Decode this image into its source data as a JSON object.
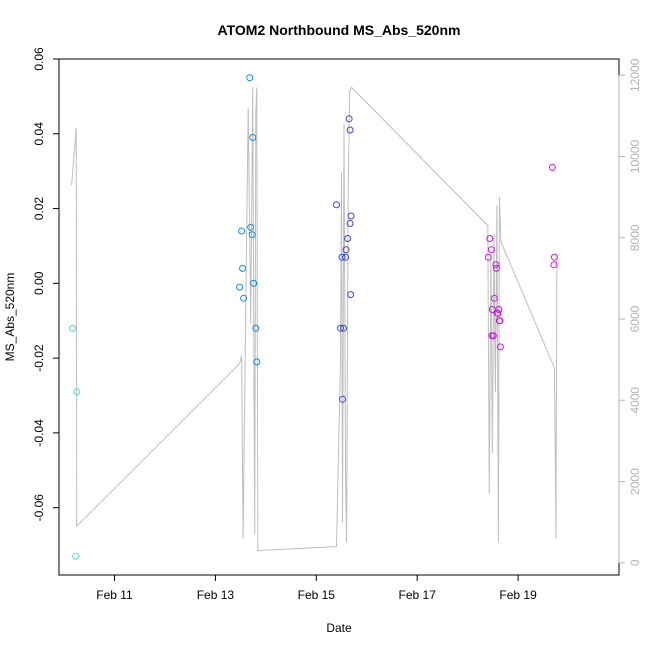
{
  "chart_data": {
    "type": "scatter",
    "title": "ATOM2 Northbound MS_Abs_520nm",
    "xlabel": "Date",
    "ylabel": "MS_Abs_520nm",
    "x_ticks": [
      "Feb 11",
      "Feb 13",
      "Feb 15",
      "Feb 17",
      "Feb 19"
    ],
    "x_tick_values": [
      11,
      13,
      15,
      17,
      19
    ],
    "xlim": [
      9.9,
      21.0
    ],
    "ylim": [
      -0.078,
      0.06
    ],
    "y_ticks": [
      -0.06,
      -0.04,
      -0.02,
      0.0,
      0.02,
      0.04,
      0.06
    ],
    "y_tick_labels": [
      "-0.06",
      "-0.04",
      "-0.02",
      "0.00",
      "0.02",
      "0.04",
      "0.06"
    ],
    "y2lim": [
      -300,
      12400
    ],
    "y2_ticks": [
      0,
      2000,
      4000,
      6000,
      8000,
      10000,
      12000
    ],
    "y2_tick_labels": [
      "0",
      "2000",
      "4000",
      "6000",
      "8000",
      "10000",
      "12000"
    ],
    "grid": false,
    "legend": "none",
    "line_color": "#bebebe",
    "axis_color": "#000000",
    "right_axis_color": "#b3b3b3",
    "point_color_scale": [
      "#40e0d0",
      "#00bfff",
      "#1e50e0",
      "#8a2be2",
      "#ff00ff"
    ],
    "points": [
      {
        "x": 10.17,
        "y": -0.012
      },
      {
        "x": 10.25,
        "y": -0.029
      },
      {
        "x": 10.23,
        "y": -0.073
      },
      {
        "x": 13.48,
        "y": -0.001
      },
      {
        "x": 13.52,
        "y": 0.014
      },
      {
        "x": 13.54,
        "y": 0.004
      },
      {
        "x": 13.56,
        "y": -0.004
      },
      {
        "x": 13.68,
        "y": 0.055
      },
      {
        "x": 13.7,
        "y": 0.015
      },
      {
        "x": 13.73,
        "y": 0.013
      },
      {
        "x": 13.74,
        "y": 0.039
      },
      {
        "x": 13.76,
        "y": 0.0
      },
      {
        "x": 13.8,
        "y": -0.012
      },
      {
        "x": 13.82,
        "y": -0.021
      },
      {
        "x": 15.4,
        "y": 0.021
      },
      {
        "x": 15.48,
        "y": -0.012
      },
      {
        "x": 15.51,
        "y": 0.007
      },
      {
        "x": 15.52,
        "y": -0.031
      },
      {
        "x": 15.54,
        "y": -0.012
      },
      {
        "x": 15.58,
        "y": 0.007
      },
      {
        "x": 15.59,
        "y": 0.009
      },
      {
        "x": 15.62,
        "y": 0.012
      },
      {
        "x": 15.65,
        "y": 0.044
      },
      {
        "x": 15.67,
        "y": 0.041
      },
      {
        "x": 15.67,
        "y": 0.016
      },
      {
        "x": 15.69,
        "y": 0.018
      },
      {
        "x": 15.68,
        "y": -0.003
      },
      {
        "x": 18.41,
        "y": 0.007
      },
      {
        "x": 18.44,
        "y": 0.012
      },
      {
        "x": 18.47,
        "y": 0.009
      },
      {
        "x": 18.49,
        "y": -0.007
      },
      {
        "x": 18.48,
        "y": -0.014
      },
      {
        "x": 18.51,
        "y": -0.014
      },
      {
        "x": 18.53,
        "y": -0.004
      },
      {
        "x": 18.56,
        "y": 0.005
      },
      {
        "x": 18.57,
        "y": 0.004
      },
      {
        "x": 18.6,
        "y": -0.008
      },
      {
        "x": 18.62,
        "y": -0.007
      },
      {
        "x": 18.63,
        "y": -0.01
      },
      {
        "x": 18.64,
        "y": -0.01
      },
      {
        "x": 18.65,
        "y": -0.017
      },
      {
        "x": 18.59,
        "y": -0.008
      },
      {
        "x": 19.68,
        "y": 0.031
      },
      {
        "x": 19.72,
        "y": 0.007
      },
      {
        "x": 19.71,
        "y": 0.005
      }
    ],
    "series2": {
      "name": "",
      "x": [
        10.15,
        10.24,
        10.25,
        13.48,
        13.52,
        13.55,
        13.6,
        13.65,
        13.7,
        13.74,
        13.78,
        13.8,
        13.82,
        13.84,
        15.4,
        15.48,
        15.5,
        15.52,
        15.55,
        15.58,
        15.6,
        15.63,
        15.66,
        15.7,
        18.4,
        18.43,
        18.46,
        18.49,
        18.52,
        18.55,
        18.58,
        18.61,
        18.63,
        18.66,
        19.72,
        19.74,
        19.75,
        19.77
      ],
      "y": [
        9300,
        10700,
        900,
        4900,
        5100,
        600,
        6200,
        11200,
        5900,
        11700,
        700,
        11100,
        11700,
        300,
        400,
        5000,
        9600,
        1000,
        10800,
        2000,
        500,
        8900,
        11600,
        11700,
        8300,
        1700,
        7600,
        2700,
        8100,
        4200,
        8800,
        500,
        9000,
        7900,
        4800,
        2400,
        600,
        7600
      ]
    }
  }
}
